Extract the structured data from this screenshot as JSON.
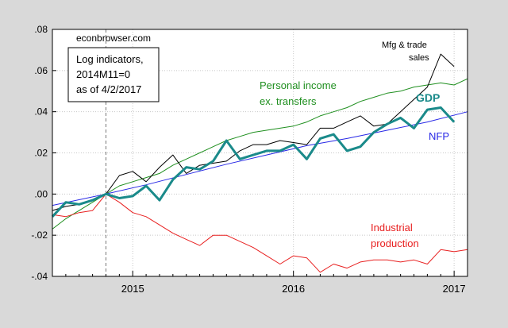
{
  "chart_data": {
    "type": "line",
    "xlim": [
      "2014-07",
      "2017-02"
    ],
    "ylim": [
      -0.04,
      0.08
    ],
    "yticks": [
      ".08",
      ".06",
      ".04",
      ".02",
      ".00",
      "-.02",
      "-.04"
    ],
    "xticks": [
      {
        "label": "2015",
        "date": "2015-01"
      },
      {
        "label": "2016",
        "date": "2016-01"
      },
      {
        "label": "2017",
        "date": "2017-01"
      }
    ],
    "grid": true,
    "reference_line": {
      "date": "2014-11",
      "style": "dashed"
    },
    "watermark": "econbrowser.com",
    "annotation_box": [
      "Log indicators,",
      "2014M11=0",
      "as of 4/2/2017"
    ],
    "series": [
      {
        "name": "Mfg & trade sales",
        "label_lines": [
          "Mfg & trade",
          "sales"
        ],
        "color": "#000000",
        "width": 1,
        "x": [
          "2014-07",
          "2014-08",
          "2014-09",
          "2014-10",
          "2014-11",
          "2014-12",
          "2015-01",
          "2015-02",
          "2015-03",
          "2015-04",
          "2015-05",
          "2015-06",
          "2015-07",
          "2015-08",
          "2015-09",
          "2015-10",
          "2015-11",
          "2015-12",
          "2016-01",
          "2016-02",
          "2016-03",
          "2016-04",
          "2016-05",
          "2016-06",
          "2016-07",
          "2016-08",
          "2016-09",
          "2016-10",
          "2016-11",
          "2016-12",
          "2017-01"
        ],
        "y": [
          -0.008,
          -0.006,
          -0.005,
          -0.003,
          0.0,
          0.009,
          0.011,
          0.006,
          0.013,
          0.019,
          0.01,
          0.014,
          0.015,
          0.016,
          0.021,
          0.024,
          0.024,
          0.026,
          0.025,
          0.024,
          0.032,
          0.032,
          0.035,
          0.038,
          0.033,
          0.034,
          0.04,
          0.046,
          0.052,
          0.068,
          0.062
        ]
      },
      {
        "name": "Personal income ex. transfers",
        "label_lines": [
          "Personal income",
          "ex. transfers"
        ],
        "color": "#1f8f1f",
        "width": 1,
        "x": [
          "2014-07",
          "2014-08",
          "2014-09",
          "2014-10",
          "2014-11",
          "2014-12",
          "2015-01",
          "2015-02",
          "2015-03",
          "2015-04",
          "2015-05",
          "2015-06",
          "2015-07",
          "2015-08",
          "2015-09",
          "2015-10",
          "2015-11",
          "2015-12",
          "2016-01",
          "2016-02",
          "2016-03",
          "2016-04",
          "2016-05",
          "2016-06",
          "2016-07",
          "2016-08",
          "2016-09",
          "2016-10",
          "2016-11",
          "2016-12",
          "2017-01",
          "2017-02"
        ],
        "y": [
          -0.017,
          -0.012,
          -0.008,
          -0.004,
          0.0,
          0.004,
          0.006,
          0.008,
          0.01,
          0.014,
          0.017,
          0.02,
          0.023,
          0.026,
          0.028,
          0.03,
          0.031,
          0.032,
          0.033,
          0.035,
          0.038,
          0.04,
          0.042,
          0.045,
          0.047,
          0.049,
          0.05,
          0.052,
          0.053,
          0.054,
          0.053,
          0.056
        ]
      },
      {
        "name": "GDP",
        "label_lines": [
          "GDP"
        ],
        "color": "#1a8a8a",
        "width": 3,
        "x": [
          "2014-07",
          "2014-08",
          "2014-09",
          "2014-10",
          "2014-11",
          "2014-12",
          "2015-01",
          "2015-02",
          "2015-03",
          "2015-04",
          "2015-05",
          "2015-06",
          "2015-07",
          "2015-08",
          "2015-09",
          "2015-10",
          "2015-11",
          "2015-12",
          "2016-01",
          "2016-02",
          "2016-03",
          "2016-04",
          "2016-05",
          "2016-06",
          "2016-07",
          "2016-08",
          "2016-09",
          "2016-10",
          "2016-11",
          "2016-12",
          "2017-01"
        ],
        "y": [
          -0.011,
          -0.004,
          -0.005,
          -0.003,
          0.0,
          -0.002,
          -0.001,
          0.004,
          -0.003,
          0.007,
          0.013,
          0.012,
          0.016,
          0.026,
          0.017,
          0.019,
          0.021,
          0.021,
          0.024,
          0.017,
          0.027,
          0.029,
          0.021,
          0.023,
          0.03,
          0.034,
          0.037,
          0.032,
          0.041,
          0.042,
          0.035
        ]
      },
      {
        "name": "NFP",
        "label_lines": [
          "NFP"
        ],
        "color": "#2828e6",
        "width": 1,
        "x": [
          "2014-07",
          "2014-11",
          "2015-02",
          "2015-05",
          "2015-08",
          "2015-11",
          "2016-02",
          "2016-05",
          "2016-08",
          "2016-11",
          "2017-02"
        ],
        "y": [
          -0.0055,
          0.0,
          0.0045,
          0.0095,
          0.0145,
          0.019,
          0.0235,
          0.027,
          0.031,
          0.035,
          0.04
        ]
      },
      {
        "name": "Industrial production",
        "label_lines": [
          "Industrial",
          "production"
        ],
        "color": "#e82020",
        "width": 1,
        "x": [
          "2014-07",
          "2014-08",
          "2014-09",
          "2014-10",
          "2014-11",
          "2014-12",
          "2015-01",
          "2015-02",
          "2015-03",
          "2015-04",
          "2015-05",
          "2015-06",
          "2015-07",
          "2015-08",
          "2015-09",
          "2015-10",
          "2015-11",
          "2015-12",
          "2016-01",
          "2016-02",
          "2016-03",
          "2016-04",
          "2016-05",
          "2016-06",
          "2016-07",
          "2016-08",
          "2016-09",
          "2016-10",
          "2016-11",
          "2016-12",
          "2017-01",
          "2017-02"
        ],
        "y": [
          -0.01,
          -0.011,
          -0.009,
          -0.008,
          0.0,
          -0.004,
          -0.009,
          -0.011,
          -0.015,
          -0.019,
          -0.022,
          -0.025,
          -0.02,
          -0.02,
          -0.023,
          -0.026,
          -0.03,
          -0.034,
          -0.03,
          -0.031,
          -0.038,
          -0.034,
          -0.036,
          -0.033,
          -0.032,
          -0.032,
          -0.033,
          -0.032,
          -0.034,
          -0.027,
          -0.028,
          -0.027
        ]
      }
    ]
  }
}
